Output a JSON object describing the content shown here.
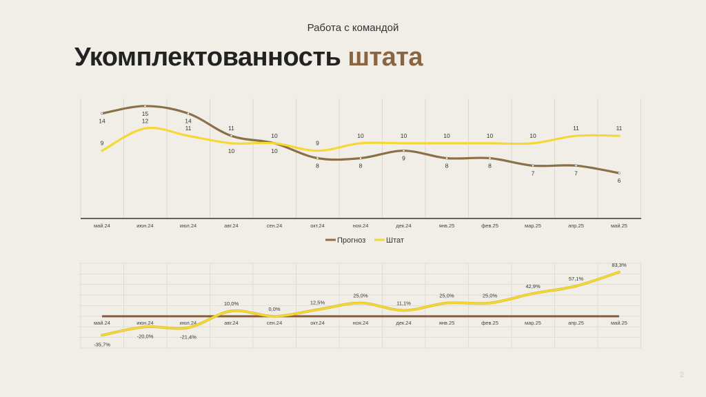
{
  "header": {
    "subtitle": "Работа с командой",
    "title_main": "Укомплектованность ",
    "title_accent": "штата"
  },
  "page_number": "2",
  "colors": {
    "background": "#f1eee7",
    "accent": "#8a6542",
    "prognoz": "#8b6f47",
    "shtat": "#f5d835",
    "baseline": "#8a5a3a"
  },
  "chart_data": [
    {
      "type": "line",
      "smooth": true,
      "categories": [
        "май.24",
        "июн.24",
        "июл.24",
        "авг.24",
        "сен.24",
        "окт.24",
        "ноя.24",
        "дек.24",
        "янв.25",
        "фев.25",
        "мар.25",
        "апр.25",
        "май.25"
      ],
      "series": [
        {
          "name": "Прогноз",
          "values": [
            14,
            15,
            14,
            11,
            10,
            8,
            8,
            9,
            8,
            8,
            7,
            7,
            6
          ]
        },
        {
          "name": "Штат",
          "values": [
            9,
            12,
            11,
            10,
            10,
            9,
            10,
            10,
            10,
            10,
            10,
            11,
            11
          ]
        }
      ],
      "ylim": [
        0,
        16
      ],
      "grid": "vertical",
      "legend": "bottom"
    },
    {
      "type": "line",
      "smooth": true,
      "categories": [
        "май.24",
        "июн.24",
        "июл.24",
        "авг.24",
        "сен.24",
        "окт.24",
        "ноя.24",
        "дек.24",
        "янв.25",
        "фев.25",
        "мар.25",
        "апр.25",
        "май.25"
      ],
      "series": [
        {
          "values": [
            -35.7,
            -20.0,
            -21.4,
            10.0,
            0.0,
            12.5,
            25.0,
            11.1,
            25.0,
            25.0,
            42.9,
            57.1,
            83.3
          ],
          "labels": [
            "-35,7%",
            "-20,0%",
            "-21,4%",
            "10,0%",
            "0,0%",
            "12,5%",
            "25,0%",
            "11,1%",
            "25,0%",
            "25,0%",
            "42,9%",
            "57,1%",
            "83,3%"
          ]
        },
        {
          "values": [
            0,
            0,
            0,
            0,
            0,
            0,
            0,
            0,
            0,
            0,
            0,
            0,
            0
          ]
        }
      ],
      "ylim": [
        -60,
        100
      ],
      "grid": "both",
      "legend": "none"
    }
  ]
}
